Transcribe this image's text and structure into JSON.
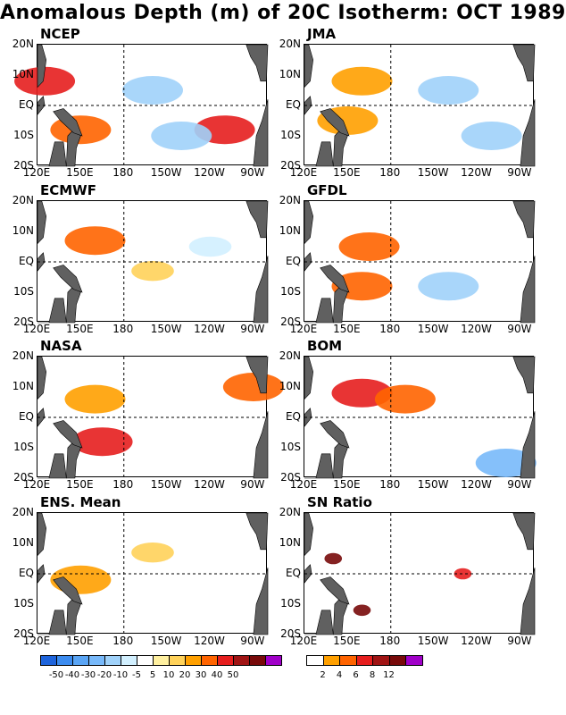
{
  "title": "Anomalous Depth (m) of 20C Isotherm: OCT 1989",
  "colors": {
    "land": "#606060",
    "grid": "#000000"
  },
  "axes": {
    "y_ticks": [
      "20N",
      "10N",
      "EQ",
      "10S",
      "20S"
    ],
    "x_ticks": [
      "120E",
      "150E",
      "180",
      "150W",
      "120W",
      "90W"
    ]
  },
  "panels": [
    {
      "name": "NCEP",
      "label": "NCEP"
    },
    {
      "name": "JMA",
      "label": "JMA"
    },
    {
      "name": "ECMWF",
      "label": "ECMWF"
    },
    {
      "name": "GFDL",
      "label": "GFDL"
    },
    {
      "name": "NASA",
      "label": "NASA"
    },
    {
      "name": "BOM",
      "label": "BOM"
    },
    {
      "name": "ENS",
      "label": "ENS. Mean"
    },
    {
      "name": "SN",
      "label": "SN Ratio"
    }
  ],
  "colorbar_anom": {
    "labels": [
      "-50",
      "-40",
      "-30",
      "-20",
      "-10",
      "-5",
      "5",
      "10",
      "20",
      "30",
      "40",
      "50"
    ],
    "colors": [
      "#1e64dc",
      "#3c8cf0",
      "#5aa5f5",
      "#78b9fa",
      "#a0d2fa",
      "#d2f0ff",
      "#ffffff",
      "#fff0a0",
      "#ffd25a",
      "#ffa000",
      "#ff6400",
      "#e61e1e",
      "#a01414",
      "#780a0a",
      "#a000c8"
    ]
  },
  "colorbar_sn": {
    "labels": [
      "2",
      "4",
      "6",
      "8",
      "12"
    ],
    "colors": [
      "#ffffff",
      "#ffa000",
      "#ff6400",
      "#e61e1e",
      "#a01414",
      "#780a0a",
      "#a000c8"
    ]
  },
  "chart_data": {
    "type": "heatmap",
    "title": "Anomalous Depth (m) of 20C Isotherm: OCT 1989",
    "x_range": [
      "120E",
      "80W"
    ],
    "y_range": [
      "20S",
      "20N"
    ],
    "panels": [
      "NCEP",
      "JMA",
      "ECMWF",
      "GFDL",
      "NASA",
      "BOM",
      "ENS. Mean",
      "SN Ratio"
    ],
    "colorbar_levels_anomaly": [
      -50,
      -40,
      -30,
      -20,
      -10,
      -5,
      5,
      10,
      20,
      30,
      40,
      50
    ],
    "colorbar_levels_sn": [
      2,
      4,
      6,
      8,
      12
    ],
    "features": [
      {
        "panel": "NCEP",
        "lon": 150,
        "lat": -8,
        "value": 30
      },
      {
        "panel": "NCEP",
        "lon": 125,
        "lat": 8,
        "value": 40
      },
      {
        "panel": "NCEP",
        "lon": 250,
        "lat": -8,
        "value": 40
      },
      {
        "panel": "NCEP",
        "lon": 200,
        "lat": 5,
        "value": -20
      },
      {
        "panel": "NCEP",
        "lon": 220,
        "lat": -10,
        "value": -20
      },
      {
        "panel": "JMA",
        "lon": 150,
        "lat": -5,
        "value": 20
      },
      {
        "panel": "JMA",
        "lon": 160,
        "lat": 8,
        "value": 20
      },
      {
        "panel": "JMA",
        "lon": 220,
        "lat": 5,
        "value": -20
      },
      {
        "panel": "JMA",
        "lon": 250,
        "lat": -10,
        "value": -20
      },
      {
        "panel": "ECMWF",
        "lon": 160,
        "lat": 7,
        "value": 30
      },
      {
        "panel": "ECMWF",
        "lon": 200,
        "lat": -3,
        "value": 10
      },
      {
        "panel": "ECMWF",
        "lon": 240,
        "lat": 5,
        "value": -10
      },
      {
        "panel": "GFDL",
        "lon": 165,
        "lat": 5,
        "value": 30
      },
      {
        "panel": "GFDL",
        "lon": 160,
        "lat": -8,
        "value": 30
      },
      {
        "panel": "GFDL",
        "lon": 220,
        "lat": -8,
        "value": -20
      },
      {
        "panel": "NASA",
        "lon": 165,
        "lat": -8,
        "value": 40
      },
      {
        "panel": "NASA",
        "lon": 160,
        "lat": 6,
        "value": 20
      },
      {
        "panel": "NASA",
        "lon": 270,
        "lat": 10,
        "value": 30
      },
      {
        "panel": "BOM",
        "lon": 160,
        "lat": 8,
        "value": 40
      },
      {
        "panel": "BOM",
        "lon": 190,
        "lat": 6,
        "value": 30
      },
      {
        "panel": "BOM",
        "lon": 260,
        "lat": -15,
        "value": -30
      },
      {
        "panel": "ENS. Mean",
        "lon": 150,
        "lat": -2,
        "value": 20
      },
      {
        "panel": "ENS. Mean",
        "lon": 200,
        "lat": 7,
        "value": 10
      },
      {
        "panel": "SN Ratio",
        "lon": 140,
        "lat": 5,
        "value": 12
      },
      {
        "panel": "SN Ratio",
        "lon": 160,
        "lat": -12,
        "value": 12
      },
      {
        "panel": "SN Ratio",
        "lon": 230,
        "lat": 0,
        "value": 6
      }
    ]
  }
}
